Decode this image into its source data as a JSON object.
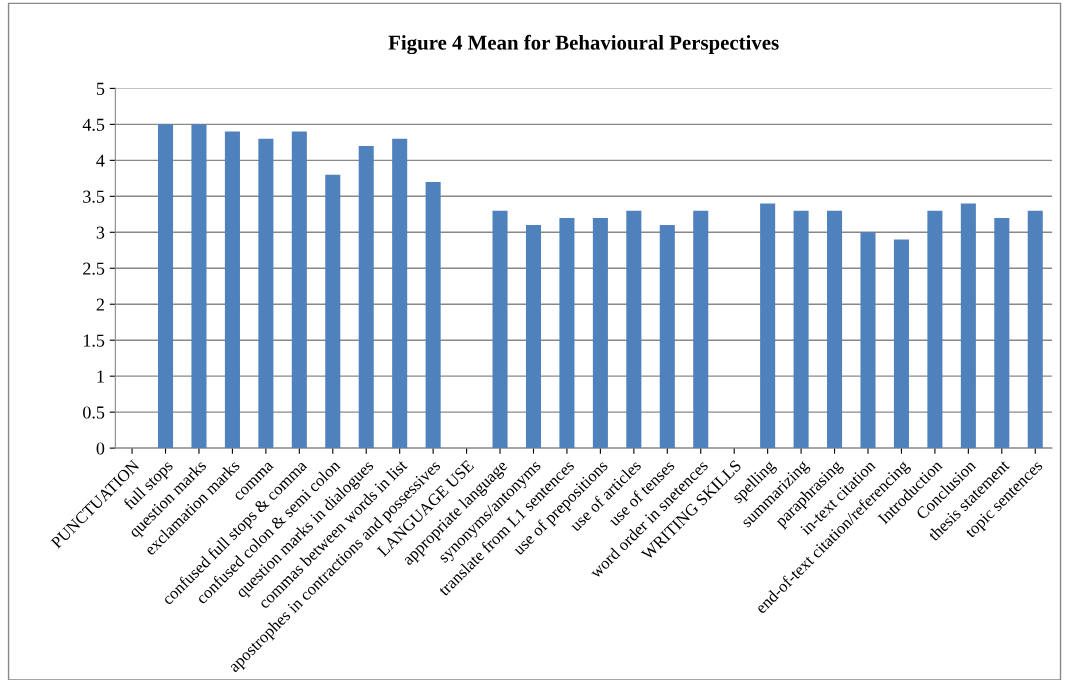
{
  "chart_data": {
    "type": "bar",
    "title": "Figure 4 Mean for Behavioural Perspectives",
    "categories": [
      "PUNCTUATION",
      "full stops",
      "question marks",
      "exclamation marks",
      "comma",
      "confused full stops & comma",
      "confused colon & semi colon",
      "question marks in dialogues",
      "commas between words in list",
      "apostrophes in contractions and possessives",
      "LANGUAGE USE",
      "appropriate language",
      "synonyms/antonyms",
      "translate from L1 sentences",
      "use of prepositions",
      "use of articles",
      "use of tenses",
      "word order in snetences",
      "WRITING SKILLS",
      "spelling",
      "summarizing",
      "paraphrasing",
      "in-text citation",
      "end-of-text citation/referencing",
      "Introduction",
      "Conclusion",
      "thesis statement",
      "topic sentences"
    ],
    "values": [
      null,
      4.5,
      4.5,
      4.4,
      4.3,
      4.4,
      3.8,
      4.2,
      4.3,
      3.7,
      null,
      3.3,
      3.1,
      3.2,
      3.2,
      3.3,
      3.1,
      3.3,
      null,
      3.4,
      3.3,
      3.3,
      3.0,
      2.9,
      3.3,
      3.4,
      3.2,
      3.3
    ],
    "color": "#4f81bd",
    "ylim": [
      0,
      5
    ],
    "yticks": [
      0,
      0.5,
      1,
      1.5,
      2,
      2.5,
      3,
      3.5,
      4,
      4.5,
      5
    ],
    "grid": "y",
    "legend": false
  }
}
